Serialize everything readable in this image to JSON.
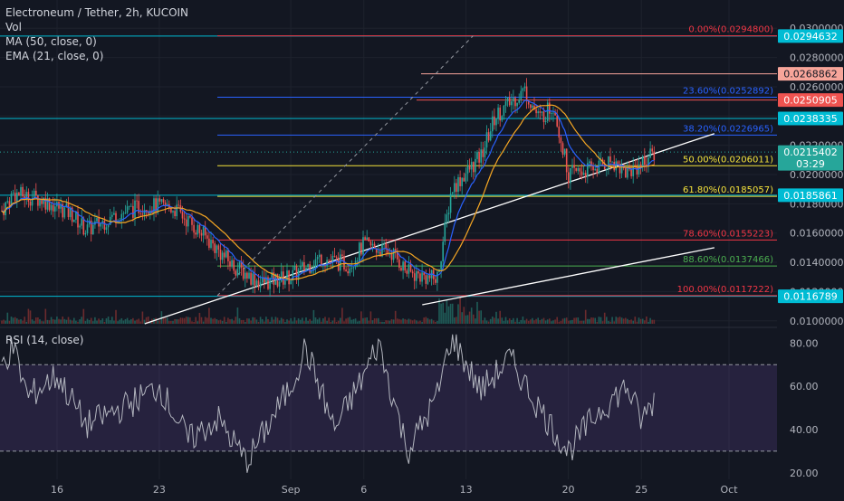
{
  "header": {
    "symbol": "Electroneum / Tether, 2h, KUCOIN",
    "indicators": [
      "Vol",
      "MA (50, close, 0)",
      "EMA (21, close, 0)"
    ],
    "rsi_label": "RSI (14, close)"
  },
  "colors": {
    "background": "#131722",
    "candle_up": "#26a69a",
    "candle_down": "#ef5350",
    "ma": "#2962ff",
    "ema": "#f5a623",
    "rsi_line": "#b2b5be",
    "rsi_band": "#7e57c2"
  },
  "chart_data": [
    {
      "type": "candlestick",
      "x_ticks": [
        "16",
        "23",
        "Sep",
        "6",
        "13",
        "20",
        "25",
        "Oct"
      ],
      "y_ticks": [
        "0.0300000",
        "0.0280000",
        "0.0260000",
        "0.0240000",
        "0.0220000",
        "0.0200000",
        "0.0180000",
        "0.0160000",
        "0.0140000",
        "0.0120000",
        "0.0100000"
      ],
      "ylim": [
        0.0098,
        0.0302
      ],
      "price_badges": [
        {
          "label": "0.0294632",
          "value": 0.0294632,
          "color": "#00bcd4"
        },
        {
          "label": "0.0268862",
          "value": 0.0268862,
          "color": "#f7a59a"
        },
        {
          "label": "0.0250905",
          "value": 0.0250905,
          "color": "#ef5350"
        },
        {
          "label": "0.0238335",
          "value": 0.0238335,
          "color": "#00bcd4"
        },
        {
          "label": "0.0215402",
          "value": 0.0215402,
          "color": "#26a69a"
        },
        {
          "label": "0.0185861",
          "value": 0.0185861,
          "color": "#00bcd4"
        },
        {
          "label": "0.0116789",
          "value": 0.0116789,
          "color": "#00bcd4"
        }
      ],
      "countdown": "03:29",
      "fib_levels": [
        {
          "label": "0.00%(0.0294800)",
          "value": 0.02948,
          "color": "#f23645"
        },
        {
          "label": "23.60%(0.0252892)",
          "value": 0.0252892,
          "color": "#2962ff"
        },
        {
          "label": "38.20%(0.0226965)",
          "value": 0.0226965,
          "color": "#2962ff"
        },
        {
          "label": "50.00%(0.0206011)",
          "value": 0.0206011,
          "color": "#f5e33b"
        },
        {
          "label": "61.80%(0.0185057)",
          "value": 0.0185057,
          "color": "#f5e33b"
        },
        {
          "label": "78.60%(0.0155223)",
          "value": 0.0155223,
          "color": "#f23645"
        },
        {
          "label": "88.60%(0.0137466)",
          "value": 0.0137466,
          "color": "#4caf50"
        },
        {
          "label": "100.00%(0.0117222)",
          "value": 0.0117222,
          "color": "#f23645"
        }
      ],
      "horizontal_lines": [
        {
          "value": 0.0294632,
          "color": "#00bcd4"
        },
        {
          "value": 0.0268862,
          "color": "#f7a59a"
        },
        {
          "value": 0.0250905,
          "color": "#ef5350"
        },
        {
          "value": 0.0238335,
          "color": "#00bcd4"
        },
        {
          "value": 0.0185861,
          "color": "#00bcd4"
        },
        {
          "value": 0.0116789,
          "color": "#00bcd4"
        }
      ],
      "trendlines": [
        {
          "from": [
            "22 Aug",
            0.0098
          ],
          "to": [
            "30 Sep",
            0.0228
          ],
          "color": "#ffffff"
        },
        {
          "from": [
            "10 Sep",
            0.0111
          ],
          "to": [
            "30 Sep",
            0.015
          ],
          "color": "#ffffff"
        }
      ],
      "price_path": [
        {
          "date": "10 Aug",
          "close": 0.0153
        },
        {
          "date": "12 Aug",
          "close": 0.0172
        },
        {
          "date": "13 Aug",
          "close": 0.0187
        },
        {
          "date": "15 Aug",
          "close": 0.0183
        },
        {
          "date": "17 Aug",
          "close": 0.0173
        },
        {
          "date": "18 Aug",
          "close": 0.0162
        },
        {
          "date": "20 Aug",
          "close": 0.0172
        },
        {
          "date": "22 Aug",
          "close": 0.0179
        },
        {
          "date": "24 Aug",
          "close": 0.0177
        },
        {
          "date": "26 Aug",
          "close": 0.0159
        },
        {
          "date": "28 Aug",
          "close": 0.0138
        },
        {
          "date": "30 Aug",
          "close": 0.0126
        },
        {
          "date": "1 Sep",
          "close": 0.013
        },
        {
          "date": "3 Sep",
          "close": 0.0143
        },
        {
          "date": "5 Sep",
          "close": 0.0138
        },
        {
          "date": "6 Sep",
          "close": 0.0152
        },
        {
          "date": "8 Sep",
          "close": 0.0146
        },
        {
          "date": "9 Sep",
          "close": 0.0133
        },
        {
          "date": "11 Sep",
          "close": 0.0128
        },
        {
          "date": "12 Sep",
          "close": 0.019
        },
        {
          "date": "13 Sep",
          "close": 0.0201
        },
        {
          "date": "14 Sep",
          "close": 0.0212
        },
        {
          "date": "15 Sep",
          "close": 0.024
        },
        {
          "date": "17 Sep",
          "close": 0.0258
        },
        {
          "date": "18 Sep",
          "close": 0.0238
        },
        {
          "date": "19 Sep",
          "close": 0.0248
        },
        {
          "date": "20 Sep",
          "close": 0.02
        },
        {
          "date": "22 Sep",
          "close": 0.0205
        },
        {
          "date": "23 Sep",
          "close": 0.021
        },
        {
          "date": "24 Sep",
          "close": 0.0201
        },
        {
          "date": "26 Sep",
          "close": 0.0215
        }
      ]
    },
    {
      "type": "line",
      "title": "RSI (14, close)",
      "y_ticks": [
        "80.00",
        "60.00",
        "40.00",
        "20.00"
      ],
      "ylim": [
        17,
        86
      ],
      "band": [
        30,
        70
      ],
      "rsi_path": [
        {
          "date": "10 Aug",
          "value": 50
        },
        {
          "date": "13 Aug",
          "value": 78
        },
        {
          "date": "14 Aug",
          "value": 55
        },
        {
          "date": "16 Aug",
          "value": 65
        },
        {
          "date": "18 Aug",
          "value": 42
        },
        {
          "date": "21 Aug",
          "value": 52
        },
        {
          "date": "23 Aug",
          "value": 60
        },
        {
          "date": "25 Aug",
          "value": 35
        },
        {
          "date": "27 Aug",
          "value": 45
        },
        {
          "date": "29 Aug",
          "value": 25
        },
        {
          "date": "1 Sep",
          "value": 60
        },
        {
          "date": "2 Sep",
          "value": 78
        },
        {
          "date": "4 Sep",
          "value": 40
        },
        {
          "date": "6 Sep",
          "value": 65
        },
        {
          "date": "7 Sep",
          "value": 80
        },
        {
          "date": "9 Sep",
          "value": 30
        },
        {
          "date": "11 Sep",
          "value": 55
        },
        {
          "date": "12 Sep",
          "value": 83
        },
        {
          "date": "14 Sep",
          "value": 58
        },
        {
          "date": "16 Sep",
          "value": 73
        },
        {
          "date": "18 Sep",
          "value": 50
        },
        {
          "date": "20 Sep",
          "value": 30
        },
        {
          "date": "22 Sep",
          "value": 48
        },
        {
          "date": "24 Sep",
          "value": 60
        },
        {
          "date": "25 Sep",
          "value": 44
        },
        {
          "date": "26 Sep",
          "value": 55
        }
      ]
    }
  ]
}
